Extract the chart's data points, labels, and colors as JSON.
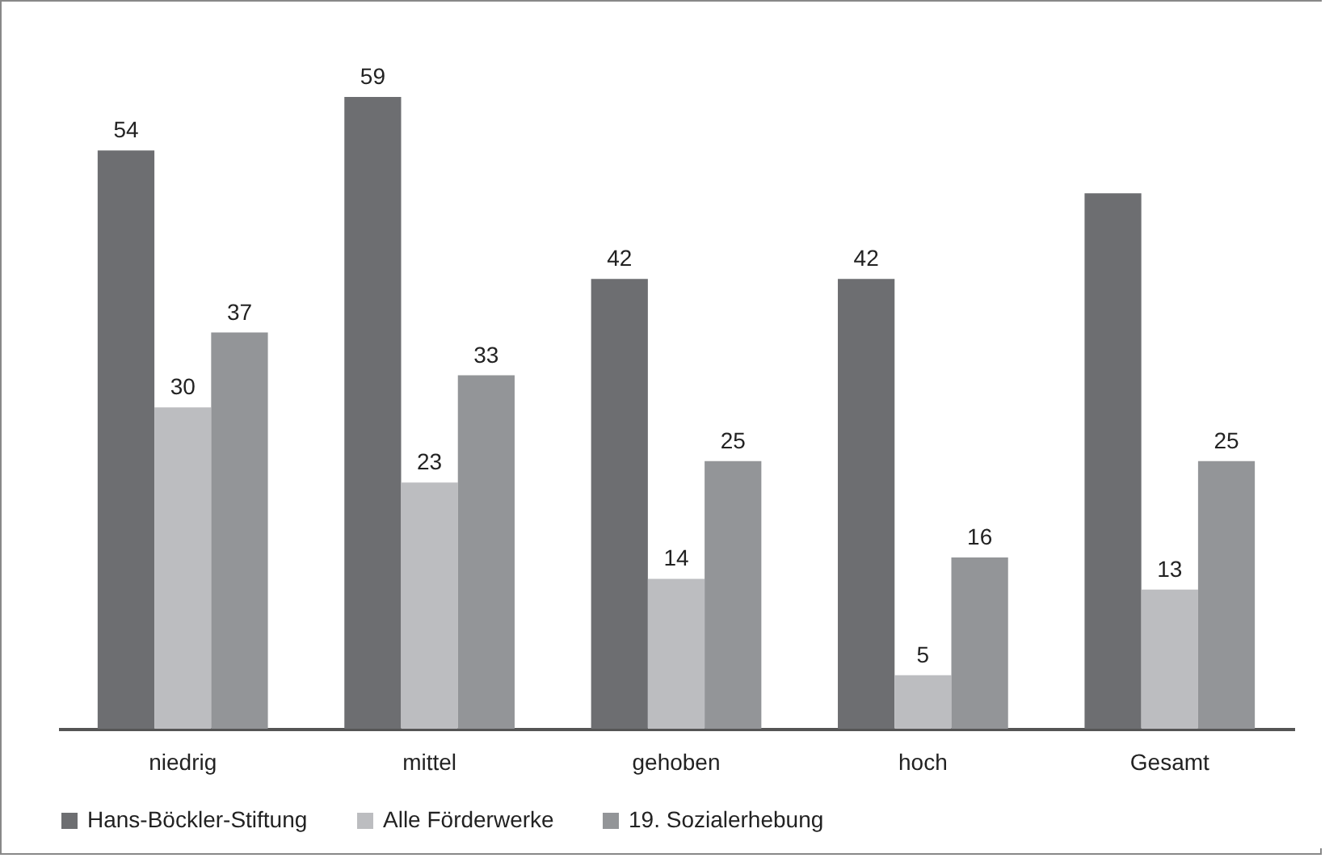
{
  "chart_data": {
    "type": "bar",
    "categories": [
      "niedrig",
      "mittel",
      "gehoben",
      "hoch",
      "Gesamt"
    ],
    "series": [
      {
        "name": "Hans-Böckler-Stiftung",
        "color": "#6d6e71",
        "values": [
          54,
          59,
          42,
          42,
          50
        ],
        "value_labels": [
          "54",
          "59",
          "42",
          "42",
          null
        ]
      },
      {
        "name": "Alle Förderwerke",
        "color": "#bcbdc0",
        "values": [
          30,
          23,
          14,
          5,
          13
        ],
        "value_labels": [
          "30",
          "23",
          "14",
          "5",
          "13"
        ]
      },
      {
        "name": "19. Sozialerhebung",
        "color": "#939598",
        "values": [
          37,
          33,
          25,
          16,
          25
        ],
        "value_labels": [
          "37",
          "33",
          "25",
          "16",
          "25"
        ]
      }
    ],
    "legend": "bottom",
    "grid": false
  }
}
